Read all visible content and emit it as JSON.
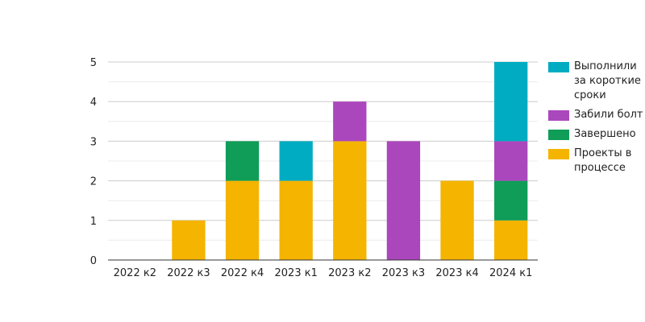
{
  "chart_data": {
    "type": "bar",
    "stacked": true,
    "categories": [
      "2022 к2",
      "2022 к3",
      "2022 к4",
      "2023 к1",
      "2023 к2",
      "2023 к3",
      "2023 к4",
      "2024 к1"
    ],
    "series": [
      {
        "name": "Проекты в процессе",
        "color": "#f4b400",
        "values": [
          0,
          1,
          2,
          2,
          3,
          0,
          2,
          1
        ]
      },
      {
        "name": "Завершено",
        "color": "#0f9d58",
        "values": [
          0,
          0,
          1,
          0,
          0,
          0,
          0,
          1
        ]
      },
      {
        "name": "Забили болт",
        "color": "#ab47bc",
        "values": [
          0,
          0,
          0,
          0,
          1,
          3,
          0,
          1
        ]
      },
      {
        "name": "Выполнили за короткие сроки",
        "color": "#00acc1",
        "values": [
          0,
          0,
          0,
          1,
          0,
          0,
          0,
          2
        ]
      }
    ],
    "ylim": [
      0,
      5
    ],
    "yticks": [
      0,
      1,
      2,
      3,
      4,
      5
    ],
    "grid": true,
    "legend_position": "right"
  }
}
